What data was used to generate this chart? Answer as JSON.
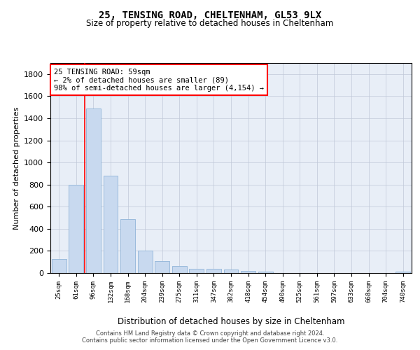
{
  "title1": "25, TENSING ROAD, CHELTENHAM, GL53 9LX",
  "title2": "Size of property relative to detached houses in Cheltenham",
  "xlabel": "Distribution of detached houses by size in Cheltenham",
  "ylabel": "Number of detached properties",
  "footer1": "Contains HM Land Registry data © Crown copyright and database right 2024.",
  "footer2": "Contains public sector information licensed under the Open Government Licence v3.0.",
  "categories": [
    "25sqm",
    "61sqm",
    "96sqm",
    "132sqm",
    "168sqm",
    "204sqm",
    "239sqm",
    "275sqm",
    "311sqm",
    "347sqm",
    "382sqm",
    "418sqm",
    "454sqm",
    "490sqm",
    "525sqm",
    "561sqm",
    "597sqm",
    "633sqm",
    "668sqm",
    "704sqm",
    "740sqm"
  ],
  "values": [
    125,
    800,
    1490,
    880,
    490,
    205,
    105,
    65,
    40,
    35,
    30,
    22,
    15,
    0,
    0,
    0,
    0,
    0,
    0,
    0,
    15
  ],
  "bar_color": "#c8d9ef",
  "bar_edge_color": "#90b4d8",
  "ylim": [
    0,
    1900
  ],
  "yticks": [
    0,
    200,
    400,
    600,
    800,
    1000,
    1200,
    1400,
    1600,
    1800
  ],
  "annotation_line1": "25 TENSING ROAD: 59sqm",
  "annotation_line2": "← 2% of detached houses are smaller (89)",
  "annotation_line3": "98% of semi-detached houses are larger (4,154) →",
  "vline_x": 1.5,
  "background_color": "#ffffff",
  "plot_bg_color": "#e8eef7",
  "grid_color": "#c0c8d8"
}
